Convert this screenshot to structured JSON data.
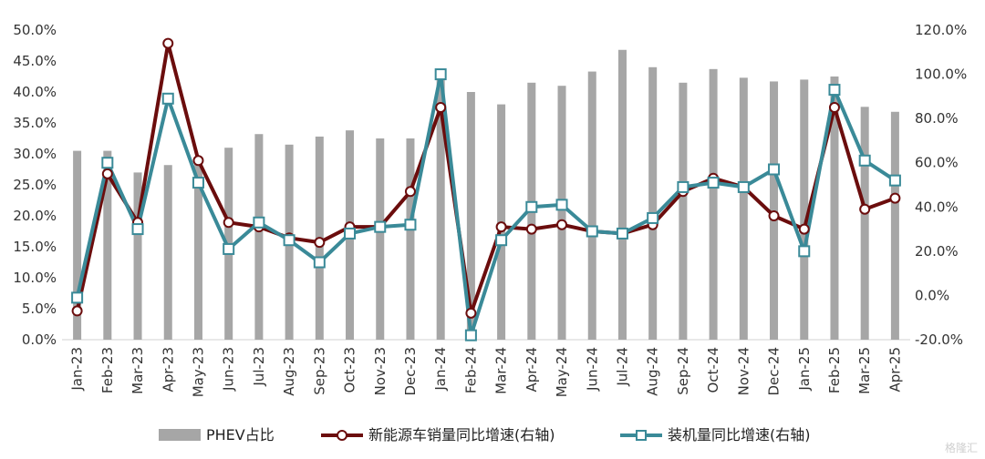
{
  "chart_data": {
    "type": "bar+line",
    "categories": [
      "Jan-23",
      "Feb-23",
      "Mar-23",
      "Apr-23",
      "May-23",
      "Jun-23",
      "Jul-23",
      "Aug-23",
      "Sep-23",
      "Oct-23",
      "Nov-23",
      "Dec-23",
      "Jan-24",
      "Feb-24",
      "Mar-24",
      "Apr-24",
      "May-24",
      "Jun-24",
      "Jul-24",
      "Aug-24",
      "Sep-24",
      "Oct-24",
      "Nov-24",
      "Dec-24",
      "Jan-25",
      "Feb-25",
      "Mar-25",
      "Apr-25"
    ],
    "y_left": {
      "ylim": [
        0,
        50
      ],
      "ticks": [
        "0.0%",
        "5.0%",
        "10.0%",
        "15.0%",
        "20.0%",
        "25.0%",
        "30.0%",
        "35.0%",
        "40.0%",
        "45.0%",
        "50.0%"
      ]
    },
    "y_right": {
      "ylim": [
        -20,
        120
      ],
      "ticks": [
        "-20.0%",
        "0.0%",
        "20.0%",
        "40.0%",
        "60.0%",
        "80.0%",
        "100.0%",
        "120.0%"
      ]
    },
    "series": [
      {
        "name": "PHEV占比",
        "kind": "bar",
        "axis": "left",
        "color": "#a6a6a6",
        "values": [
          30.5,
          30.5,
          27.0,
          28.2,
          28.5,
          31.0,
          33.2,
          31.5,
          32.8,
          33.8,
          32.5,
          32.5,
          42.0,
          40.0,
          38.0,
          41.5,
          41.0,
          43.3,
          46.8,
          44.0,
          41.5,
          43.7,
          42.3,
          41.7,
          42.0,
          42.5,
          37.6,
          36.8
        ]
      },
      {
        "name": "新能源车销量同比增速(右轴)",
        "kind": "line",
        "axis": "right",
        "color": "#6b0d0d",
        "marker": "circle",
        "values": [
          -7,
          55,
          33,
          114,
          61,
          33,
          31,
          26,
          24,
          31,
          31,
          47,
          85,
          -8,
          31,
          30,
          32,
          29,
          28,
          32,
          47,
          53,
          49,
          36,
          30,
          85,
          39,
          44
        ]
      },
      {
        "name": "装机量同比增速(右轴)",
        "kind": "line",
        "axis": "right",
        "color": "#3a8a98",
        "marker": "square",
        "values": [
          -1,
          60,
          30,
          89,
          51,
          21,
          33,
          25,
          15,
          28,
          31,
          32,
          100,
          -18,
          25,
          40,
          41,
          29,
          28,
          35,
          49,
          51,
          49,
          57,
          20,
          93,
          61,
          52
        ]
      }
    ],
    "legend": "bottom"
  },
  "watermark": "格隆汇"
}
